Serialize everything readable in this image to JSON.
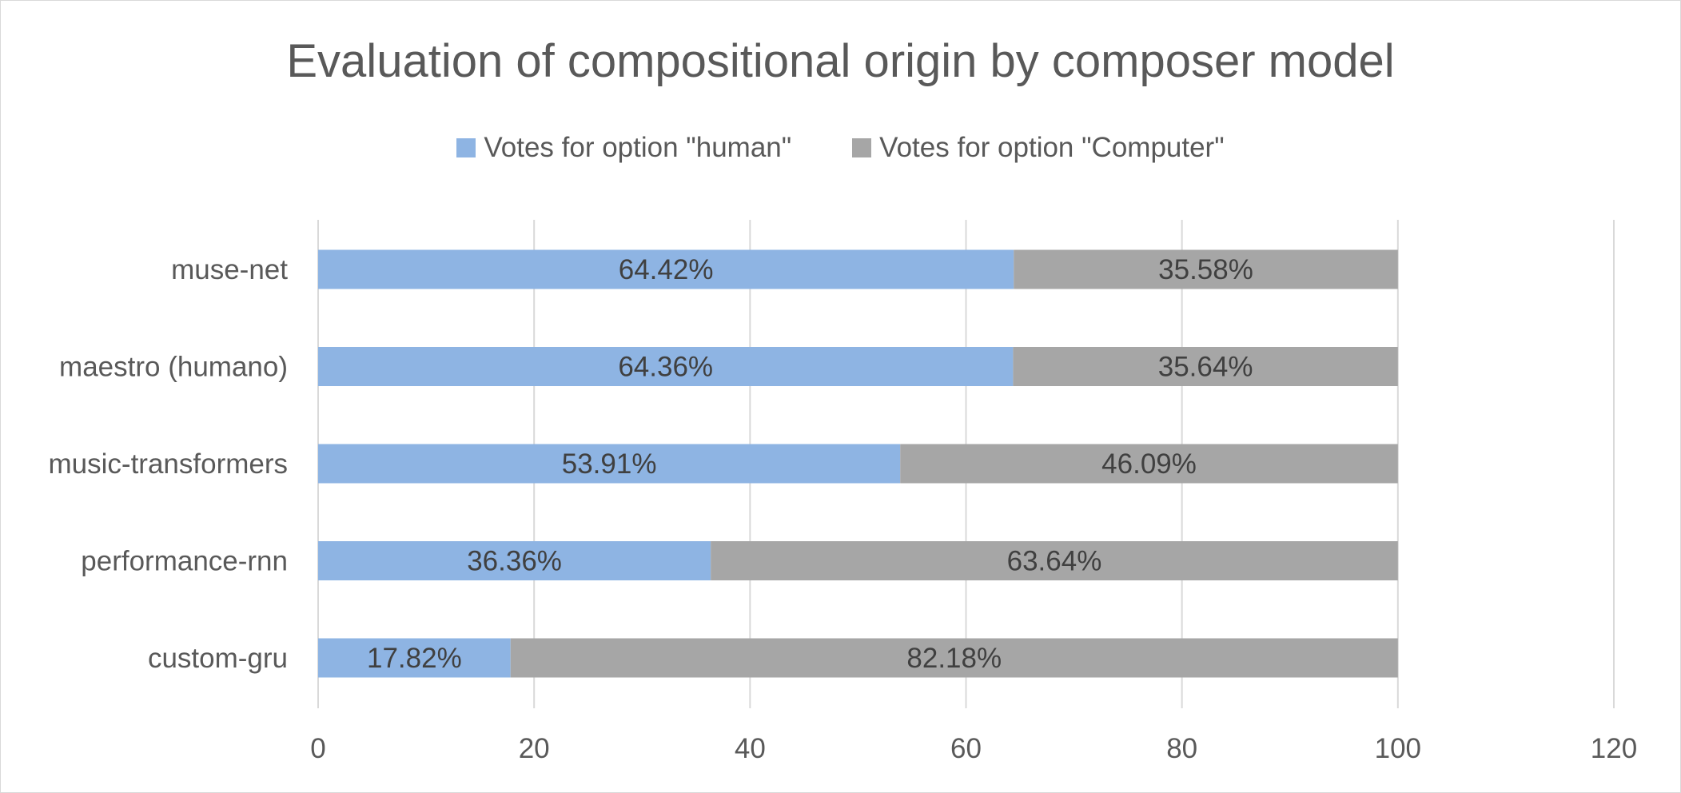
{
  "chart_data": {
    "type": "bar",
    "orientation": "horizontal",
    "stacked": true,
    "title": "Evaluation of compositional origin by composer model",
    "categories": [
      "muse-net",
      "maestro (humano)",
      "music-transformers",
      "performance-rnn",
      "custom-gru"
    ],
    "series": [
      {
        "name": "Votes for option \"human\"",
        "color": "#8eb4e3",
        "values": [
          64.42,
          64.36,
          53.91,
          36.36,
          17.82
        ],
        "labels": [
          "64.42%",
          "64.36%",
          "53.91%",
          "36.36%",
          "17.82%"
        ]
      },
      {
        "name": "Votes for option \"Computer\"",
        "color": "#a6a6a6",
        "values": [
          35.58,
          35.64,
          46.09,
          63.64,
          82.18
        ],
        "labels": [
          "35.58%",
          "35.64%",
          "46.09%",
          "63.64%",
          "82.18%"
        ]
      }
    ],
    "xlim": [
      0,
      120
    ],
    "xticks": [
      0,
      20,
      40,
      60,
      80,
      100,
      120
    ],
    "xtick_labels": [
      "0",
      "20",
      "40",
      "60",
      "80",
      "100",
      "120"
    ],
    "grid": "vertical",
    "legend_position": "top"
  }
}
